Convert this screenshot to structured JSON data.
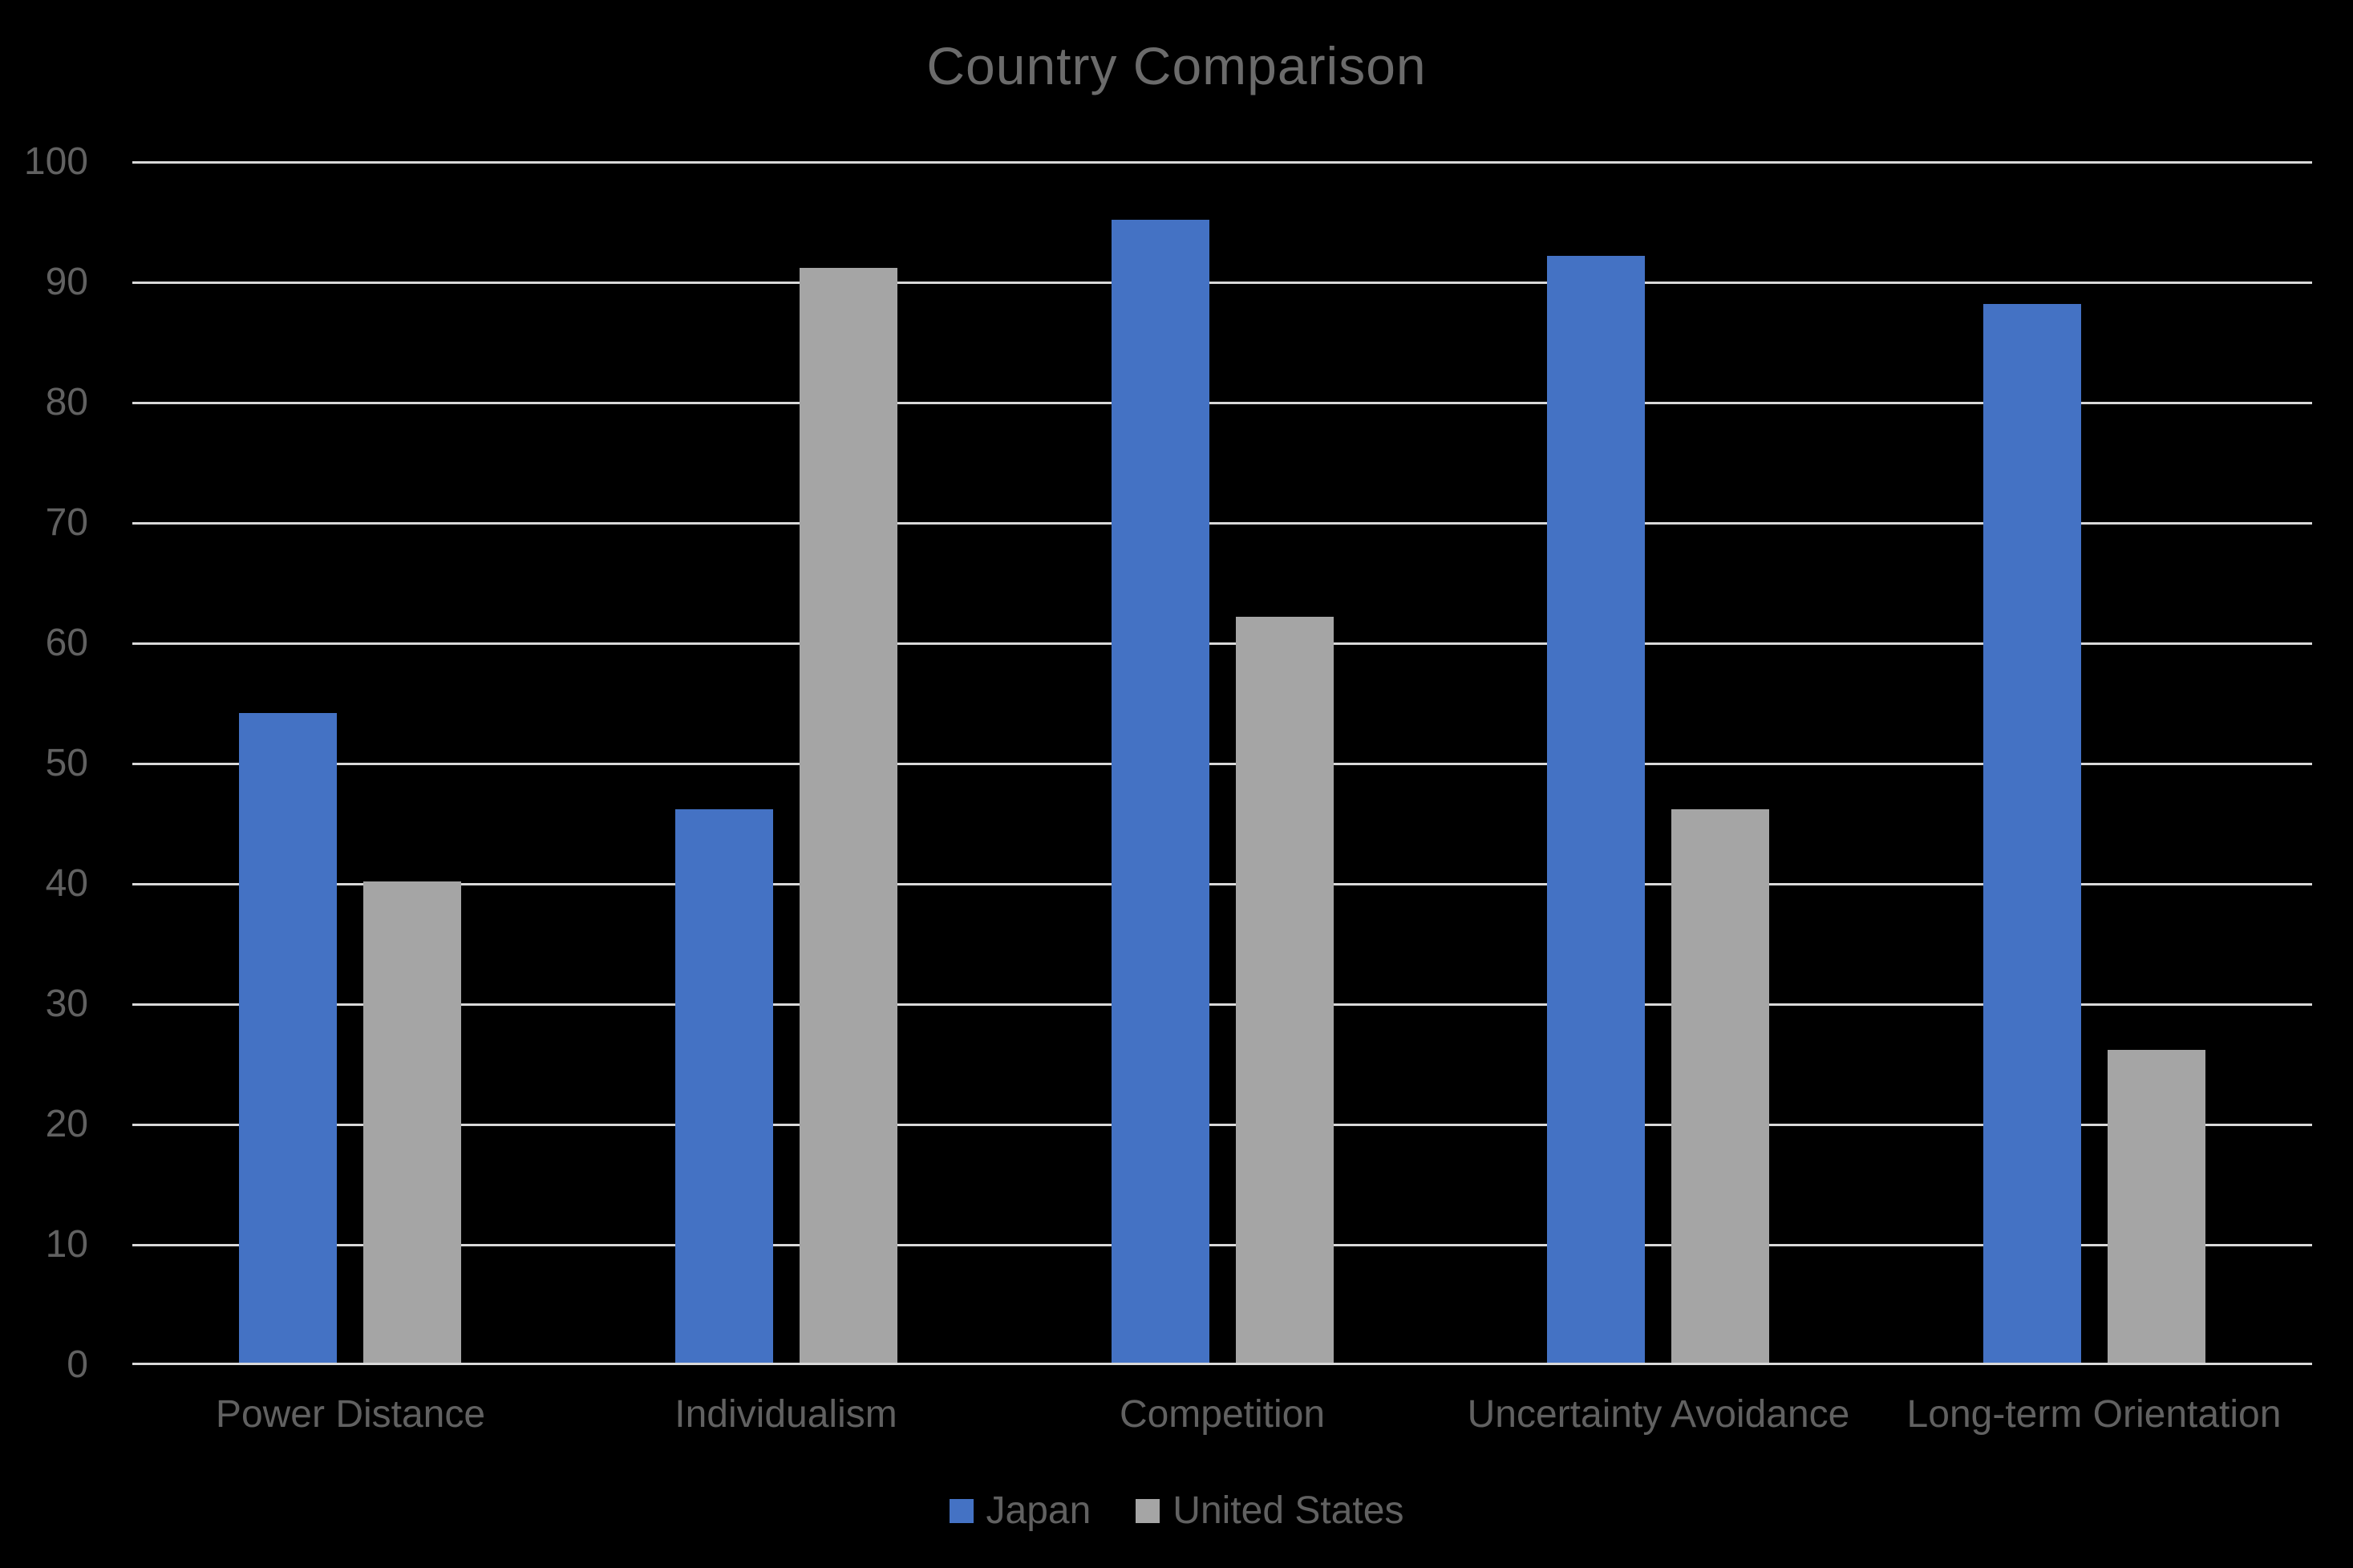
{
  "colors": {
    "background": "#000000",
    "title_text": "#6b6b6b",
    "label_text": "#616161",
    "gridline": "#D9D9D9",
    "series_japan": "#4472C4",
    "series_united_states": "#A5A5A5"
  },
  "chart_data": {
    "type": "bar",
    "title": "Country Comparison",
    "categories": [
      "Power Distance",
      "Individualism",
      "Competition",
      "Uncertainty Avoidance",
      "Long-term Orientation"
    ],
    "series": [
      {
        "name": "Japan",
        "color": "#4472C4",
        "values": [
          54,
          46,
          95,
          92,
          88
        ]
      },
      {
        "name": "United States",
        "color": "#A5A5A5",
        "values": [
          40,
          91,
          62,
          46,
          26
        ]
      }
    ],
    "xlabel": "",
    "ylabel": "",
    "y_axis": {
      "min": 0,
      "max": 100,
      "step": 10,
      "tick_labels": [
        "0",
        "10",
        "20",
        "30",
        "40",
        "50",
        "60",
        "70",
        "80",
        "90",
        "100"
      ]
    },
    "ylim": [
      0,
      100
    ],
    "grid": true,
    "legend_position": "bottom"
  }
}
